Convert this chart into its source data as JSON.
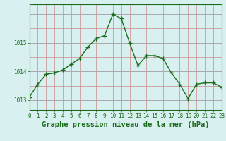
{
  "x": [
    0,
    1,
    2,
    3,
    4,
    5,
    6,
    7,
    8,
    9,
    10,
    11,
    12,
    13,
    14,
    15,
    16,
    17,
    18,
    19,
    20,
    21,
    22,
    23
  ],
  "y": [
    1013.1,
    1013.55,
    1013.9,
    1013.95,
    1014.05,
    1014.25,
    1014.45,
    1014.85,
    1015.15,
    1015.25,
    1016.0,
    1015.85,
    1015.0,
    1014.2,
    1014.55,
    1014.55,
    1014.45,
    1013.95,
    1013.55,
    1013.05,
    1013.55,
    1013.6,
    1013.6,
    1013.45
  ],
  "line_color": "#1a6b1a",
  "marker": "+",
  "marker_size": 4,
  "bg_color": "#d8f0f0",
  "xlabel": "Graphe pression niveau de la mer (hPa)",
  "xlabel_color": "#1a6b1a",
  "xlabel_fontsize": 7.5,
  "ylabel_ticks": [
    1013,
    1014,
    1015
  ],
  "ylim": [
    1012.65,
    1016.35
  ],
  "xlim": [
    0,
    23
  ],
  "xtick_labels": [
    "0",
    "1",
    "2",
    "3",
    "4",
    "5",
    "6",
    "7",
    "8",
    "9",
    "10",
    "11",
    "12",
    "13",
    "14",
    "15",
    "16",
    "17",
    "18",
    "19",
    "20",
    "21",
    "22",
    "23"
  ],
  "tick_fontsize": 5.5,
  "vgrid_color": "#cc8888",
  "hgrid_minor_color": "#cc8888",
  "hgrid_major_color": "#aaaaaa"
}
